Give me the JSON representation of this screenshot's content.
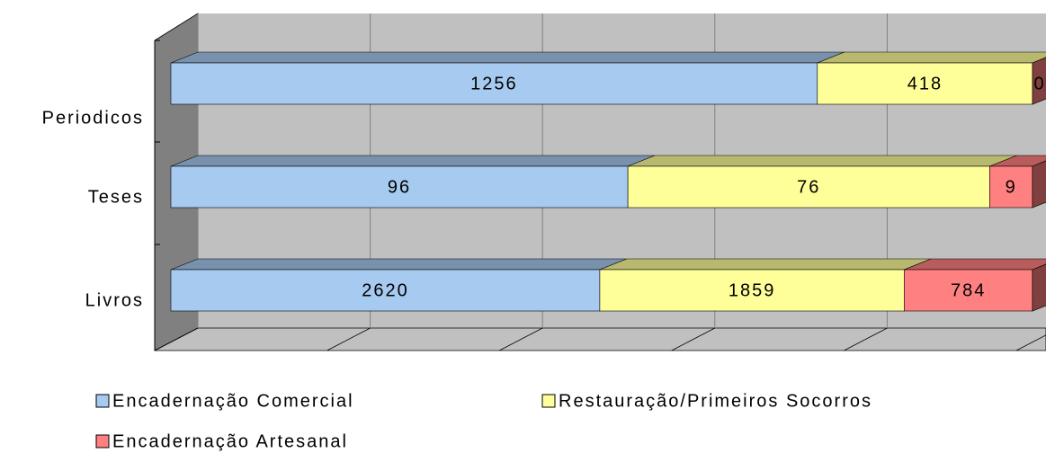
{
  "chart_data": {
    "type": "bar",
    "stacked": "percent",
    "orientation": "horizontal",
    "categories": [
      "Periodicos",
      "Teses",
      "Livros"
    ],
    "series": [
      {
        "name": "Encadernação Comercial",
        "color": "#a6caf0",
        "values": [
          1256,
          96,
          2620
        ]
      },
      {
        "name": "Restauração/Primeiros Socorros",
        "color": "#ffff99",
        "values": [
          418,
          76,
          1859
        ]
      },
      {
        "name": "Encadernação Artesanal",
        "color": "#ff8080",
        "values": [
          0,
          9,
          784
        ]
      }
    ],
    "xlim": [
      0,
      100
    ],
    "xticks": [
      0,
      20,
      40,
      60,
      80,
      100
    ],
    "grid": true,
    "legend": "bottom"
  }
}
